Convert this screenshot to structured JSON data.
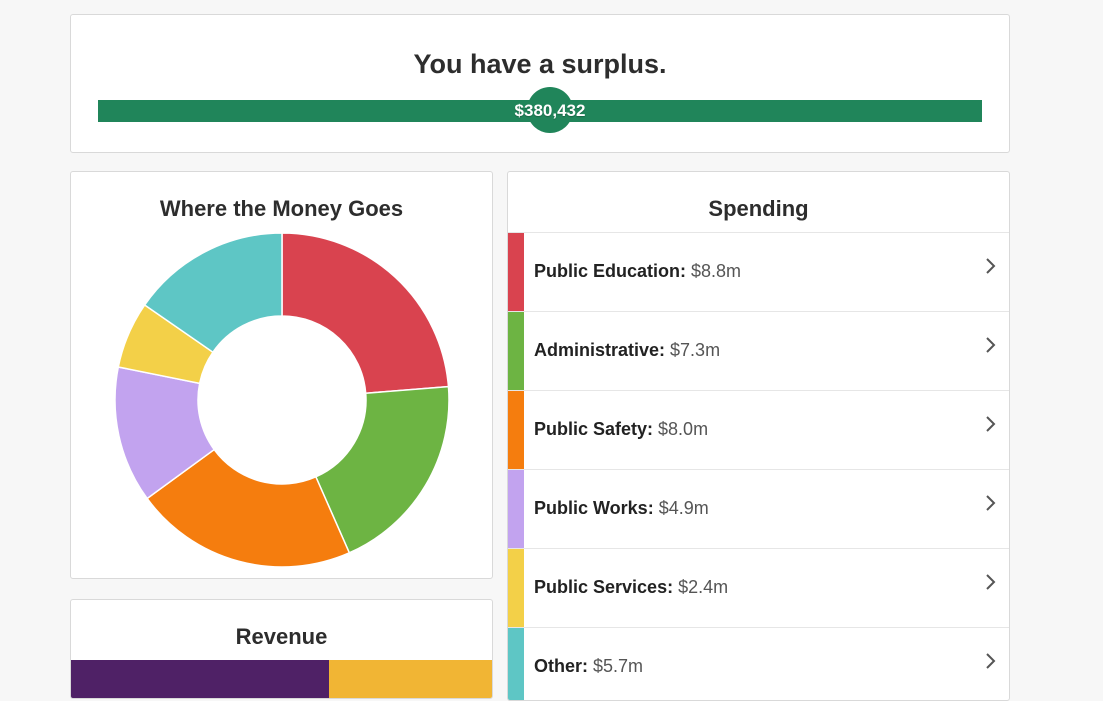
{
  "surplus": {
    "title": "You have a surplus.",
    "amount": "$380,432",
    "bar_color": "#20855a"
  },
  "donut": {
    "title": "Where the Money Goes"
  },
  "spending": {
    "title": "Spending",
    "items": [
      {
        "name": "Public Education:",
        "amount": "$8.8m",
        "color": "#d9434f"
      },
      {
        "name": "Administrative:",
        "amount": "$7.3m",
        "color": "#6db443"
      },
      {
        "name": "Public Safety:",
        "amount": "$8.0m",
        "color": "#f57d0e"
      },
      {
        "name": "Public Works:",
        "amount": "$4.9m",
        "color": "#c2a3ef"
      },
      {
        "name": "Public Services:",
        "amount": "$2.4m",
        "color": "#f3d048"
      },
      {
        "name": "Other:",
        "amount": "$5.7m",
        "color": "#5ec6c5"
      }
    ],
    "chevron_icon": "chevron-right-icon"
  },
  "revenue": {
    "title": "Revenue",
    "colors": [
      "#4f2166",
      "#f1b534"
    ]
  },
  "chart_data": {
    "type": "pie",
    "title": "Where the Money Goes",
    "categories": [
      "Public Education",
      "Administrative",
      "Public Safety",
      "Public Works",
      "Public Services",
      "Other"
    ],
    "values": [
      8.8,
      7.3,
      8.0,
      4.9,
      2.4,
      5.7
    ],
    "unit": "$m",
    "colors": [
      "#d9434f",
      "#6db443",
      "#f57d0e",
      "#c2a3ef",
      "#f3d048",
      "#5ec6c5"
    ]
  }
}
